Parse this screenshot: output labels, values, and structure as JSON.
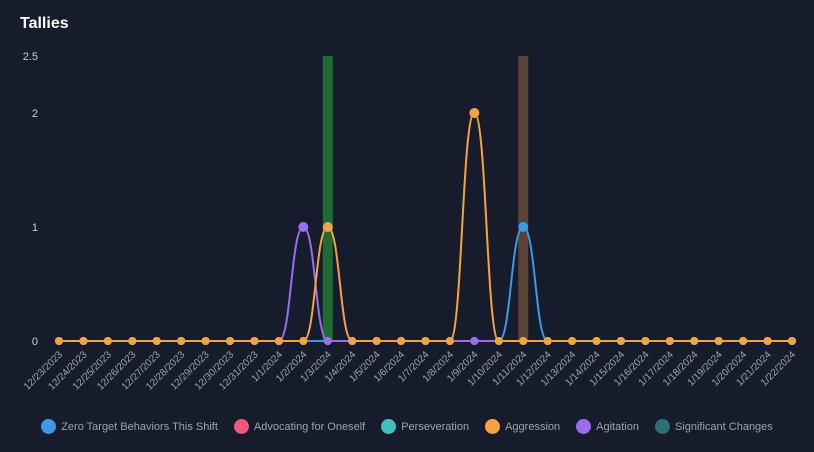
{
  "chart_data": {
    "type": "line",
    "title": "Tallies",
    "xlabel": "",
    "ylabel": "",
    "ylim": [
      0,
      2.5
    ],
    "yticks": [
      {
        "value": 0,
        "label": "0"
      },
      {
        "value": 1,
        "label": "1"
      },
      {
        "value": 2,
        "label": "2"
      },
      {
        "value": 2.5,
        "label": "2.5"
      }
    ],
    "grid": false,
    "legend_position": "bottom",
    "categories": [
      "12/23/2023",
      "12/24/2023",
      "12/25/2023",
      "12/26/2023",
      "12/27/2023",
      "12/28/2023",
      "12/29/2023",
      "12/30/2023",
      "12/31/2023",
      "1/1/2024",
      "1/2/2024",
      "1/3/2024",
      "1/4/2024",
      "1/5/2024",
      "1/6/2024",
      "1/7/2024",
      "1/8/2024",
      "1/9/2024",
      "1/10/2024",
      "1/11/2024",
      "1/12/2024",
      "1/13/2024",
      "1/14/2024",
      "1/15/2024",
      "1/16/2024",
      "1/17/2024",
      "1/18/2024",
      "1/19/2024",
      "1/20/2024",
      "1/21/2024",
      "1/22/2024"
    ],
    "series": [
      {
        "name": "Zero Target Behaviors This Shift",
        "color": "#3b9ae8",
        "kind": "line",
        "values": [
          0,
          0,
          0,
          0,
          0,
          0,
          0,
          0,
          0,
          0,
          0,
          0,
          0,
          0,
          0,
          0,
          0,
          0,
          0,
          1,
          0,
          0,
          0,
          0,
          0,
          0,
          0,
          0,
          0,
          0,
          0
        ]
      },
      {
        "name": "Advocating for Oneself",
        "color": "#f2577a",
        "kind": "line",
        "values": [
          0,
          0,
          0,
          0,
          0,
          0,
          0,
          0,
          0,
          0,
          0,
          0,
          0,
          0,
          0,
          0,
          0,
          0,
          0,
          0,
          0,
          0,
          0,
          0,
          0,
          0,
          0,
          0,
          0,
          0,
          0
        ]
      },
      {
        "name": "Perseveration",
        "color": "#3fc1c0",
        "kind": "bar",
        "values": [
          0,
          0,
          0,
          0,
          0,
          0,
          0,
          0,
          0,
          0,
          0,
          2.5,
          0,
          0,
          0,
          0,
          0,
          0,
          0,
          0,
          0,
          0,
          0,
          0,
          0,
          0,
          0,
          0,
          0,
          0,
          0
        ],
        "bar_color": "#1f6b33"
      },
      {
        "name": "Aggression",
        "color": "#f5a341",
        "kind": "line",
        "values": [
          0,
          0,
          0,
          0,
          0,
          0,
          0,
          0,
          0,
          0,
          0,
          1,
          0,
          0,
          0,
          0,
          0,
          2,
          0,
          0,
          0,
          0,
          0,
          0,
          0,
          0,
          0,
          0,
          0,
          0,
          0
        ]
      },
      {
        "name": "Agitation",
        "color": "#9b6bf2",
        "kind": "line",
        "values": [
          0,
          0,
          0,
          0,
          0,
          0,
          0,
          0,
          0,
          0,
          1,
          0,
          0,
          0,
          0,
          0,
          0,
          0,
          0,
          0,
          0,
          0,
          0,
          0,
          0,
          0,
          0,
          0,
          0,
          0,
          0
        ]
      },
      {
        "name": "Significant Changes",
        "color": "#2e6f73",
        "kind": "bar",
        "values": [
          0,
          0,
          0,
          0,
          0,
          0,
          0,
          0,
          0,
          0,
          0,
          0,
          0,
          0,
          0,
          0,
          0,
          0,
          0,
          2.5,
          0,
          0,
          0,
          0,
          0,
          0,
          0,
          0,
          0,
          0,
          0
        ],
        "bar_color": "#5a4334"
      }
    ]
  }
}
